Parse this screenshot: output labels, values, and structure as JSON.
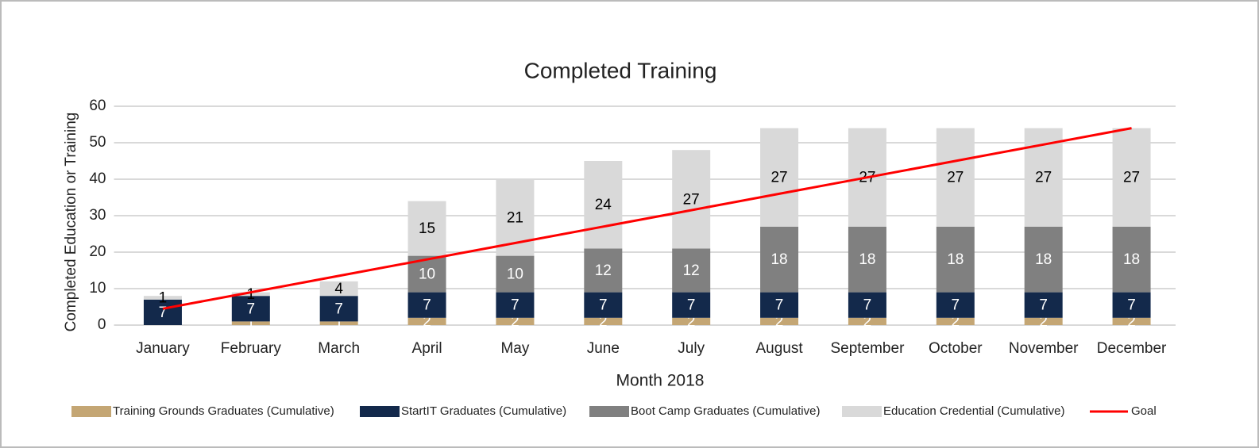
{
  "chart_data": {
    "type": "bar",
    "stacked": true,
    "title": "Completed Training",
    "x_label": "Month 2018",
    "y_label": "Completed Education or Training",
    "categories": [
      "January",
      "February",
      "March",
      "April",
      "May",
      "June",
      "July",
      "August",
      "September",
      "October",
      "November",
      "December"
    ],
    "series": [
      {
        "name": "Training Grounds Graduates (Cumulative)",
        "color": "#c4a674",
        "label_color": "#ffffff",
        "values": [
          null,
          1,
          1,
          2,
          2,
          2,
          2,
          2,
          2,
          2,
          2,
          2
        ]
      },
      {
        "name": "StartIT Graduates (Cumulative)",
        "color": "#13294b",
        "label_color": "#ffffff",
        "values": [
          7,
          7,
          7,
          7,
          7,
          7,
          7,
          7,
          7,
          7,
          7,
          7
        ]
      },
      {
        "name": "Boot Camp Graduates (Cumulative)",
        "color": "#808080",
        "label_color": "#ffffff",
        "values": [
          null,
          null,
          null,
          10,
          10,
          12,
          12,
          18,
          18,
          18,
          18,
          18
        ]
      },
      {
        "name": "Education Credential (Cumulative)",
        "color": "#d9d9d9",
        "label_color": "#000000",
        "values": [
          1,
          1,
          4,
          15,
          21,
          24,
          27,
          27,
          27,
          27,
          27,
          27
        ]
      },
      {
        "name": "Goal",
        "type": "line",
        "color": "#ff0000",
        "values": [
          4.5,
          9,
          13.5,
          18,
          22.5,
          27,
          31.5,
          36,
          40.5,
          45,
          49.5,
          54
        ]
      }
    ],
    "ylim": [
      0,
      60
    ],
    "yticks": [
      0,
      10,
      20,
      30,
      40,
      50,
      60
    ],
    "grid": true,
    "legend": "bottom"
  }
}
